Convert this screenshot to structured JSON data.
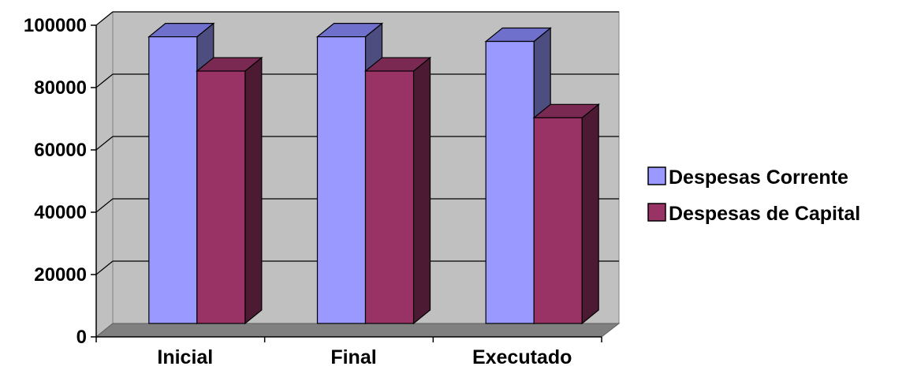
{
  "chart_data": {
    "type": "bar",
    "categories": [
      "Inicial",
      "Final",
      "Executado"
    ],
    "series": [
      {
        "name": "Despesas Corrente",
        "values": [
          92000,
          92000,
          90500
        ],
        "color": "#9999FF",
        "side_color": "#4D4D80",
        "top_color": "#6F6FCC"
      },
      {
        "name": "Despesas de Capital",
        "values": [
          81000,
          81000,
          66000
        ],
        "color": "#993366",
        "side_color": "#4D1A33",
        "top_color": "#7A2952"
      }
    ],
    "yticks": [
      "0",
      "20000",
      "40000",
      "60000",
      "80000",
      "100000"
    ],
    "ylim": [
      0,
      100000
    ],
    "grid": true,
    "legend_position": "right",
    "three_d": true,
    "wall_color": "#C0C0C0",
    "floor_color": "#808080"
  }
}
